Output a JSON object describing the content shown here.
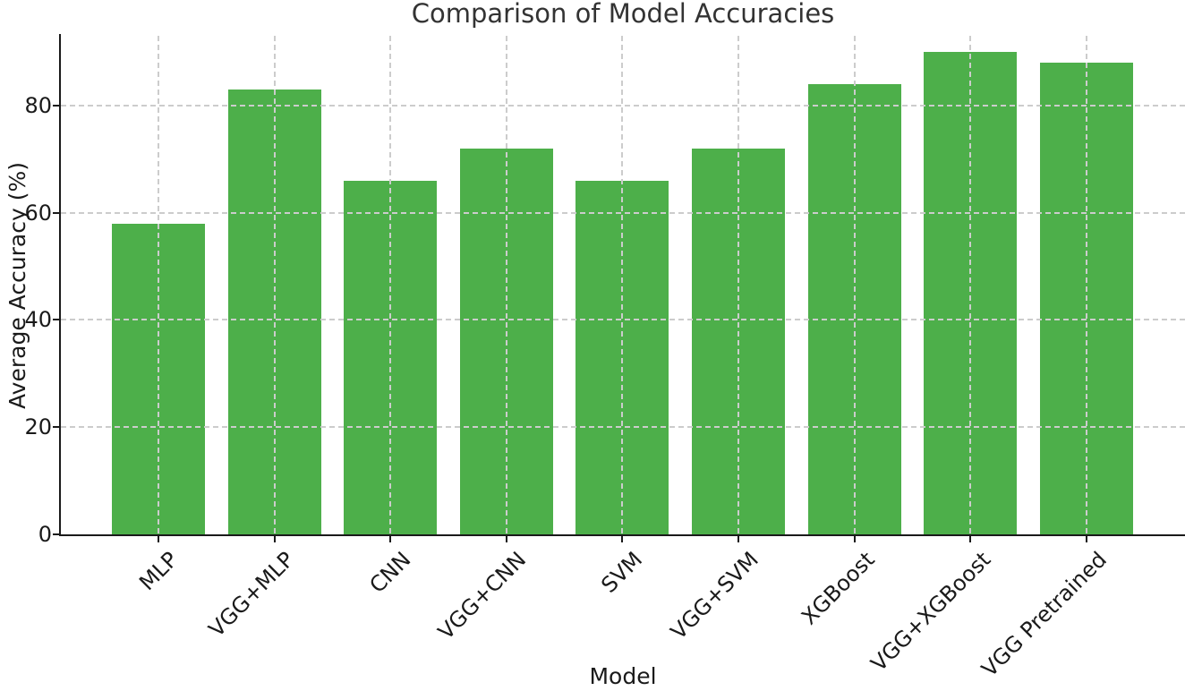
{
  "title": "Comparison of Model Accuracies",
  "chart_data": {
    "type": "bar",
    "title": "Comparison of Model Accuracies",
    "xlabel": "Model",
    "ylabel": "Average Accuracy (%)",
    "categories": [
      "MLP",
      "VGG+MLP",
      "CNN",
      "VGG+CNN",
      "SVM",
      "VGG+SVM",
      "XGBoost",
      "VGG+XGBoost",
      "VGG Pretrained"
    ],
    "values": [
      58,
      83,
      66,
      72,
      66,
      72,
      84,
      90,
      88
    ],
    "ylim": [
      0,
      93
    ],
    "yticks": [
      0,
      20,
      40,
      60,
      80
    ],
    "xtick_rotation_deg": 45,
    "bar_color": "#4daf4a",
    "grid": {
      "horizontal": true,
      "vertical": true,
      "style": "dashed",
      "color": "#cccccc",
      "drawn_above_bars": true
    },
    "spines": [
      "left",
      "bottom"
    ],
    "legend_position": "none"
  },
  "colors": {
    "background": "#ffffff",
    "bar": "#4daf4a",
    "grid": "#cccccc",
    "axis": "#1a1a1a",
    "title_text": "#333333"
  }
}
